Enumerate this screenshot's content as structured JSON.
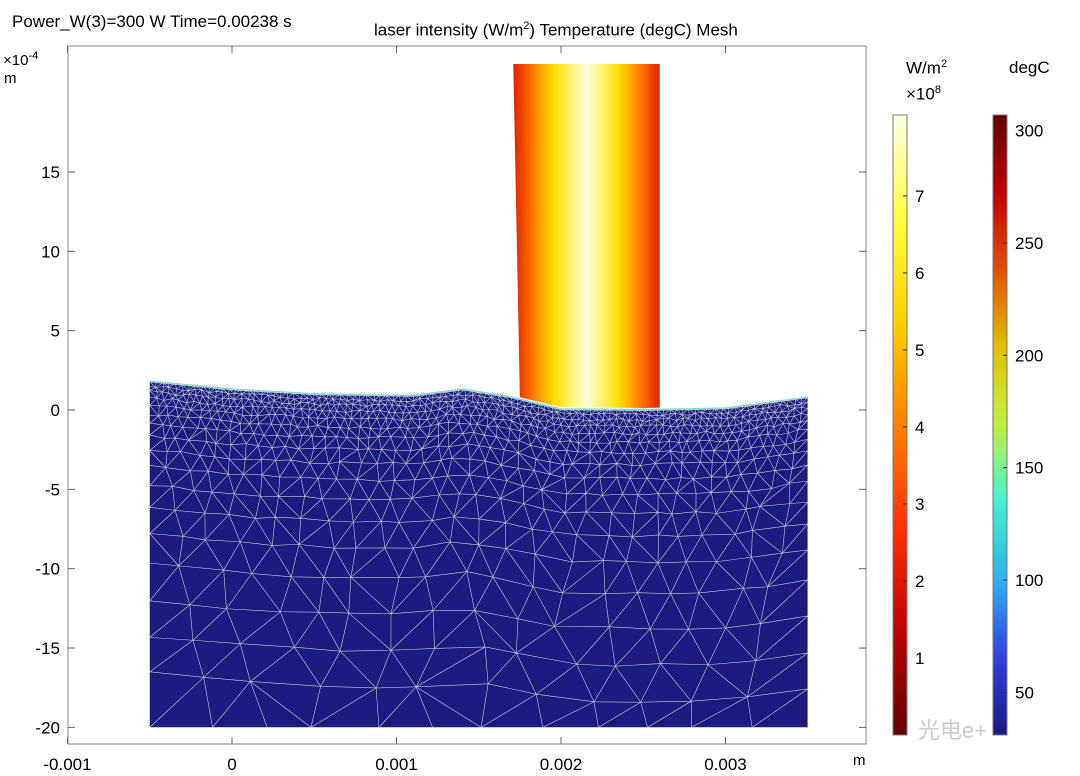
{
  "chart_data": {
    "type": "heatmap",
    "title_left": "Power_W(3)=300 W Time=0.00238 s",
    "title_right_prefix": "laser intensity (W/m",
    "title_right_sup": "2",
    "title_right_suffix": ")  Temperature (degC) Mesh",
    "y_multiplier": "×10",
    "y_multiplier_exp": "-4",
    "y_unit": "m",
    "x_unit": "m",
    "xlim": [
      -0.001,
      0.0038
    ],
    "ylim": [
      -21,
      23
    ],
    "x_ticks": [
      -0.001,
      0,
      0.001,
      0.002,
      0.003
    ],
    "x_tick_labels": [
      "-0.001",
      "0",
      "0.001",
      "0.002",
      "0.003"
    ],
    "y_ticks": [
      15,
      10,
      5,
      0,
      -5,
      -10,
      -15,
      -20
    ],
    "y_tick_labels": [
      "15",
      "10",
      "5",
      "0",
      "-5",
      "-10",
      "-15",
      "-20"
    ],
    "domain": {
      "x": [
        -0.0005,
        0.0035
      ],
      "y_bottom": -20,
      "surface_profile": [
        [
          -0.0005,
          1.8
        ],
        [
          0,
          1.3
        ],
        [
          0.0005,
          1.0
        ],
        [
          0.0011,
          0.9
        ],
        [
          0.0014,
          1.3
        ],
        [
          0.0017,
          0.8
        ],
        [
          0.002,
          0.05
        ],
        [
          0.0025,
          0.0
        ],
        [
          0.003,
          0.1
        ],
        [
          0.0035,
          0.8
        ]
      ],
      "fill_temperature_degC": 35
    },
    "laser_beam": {
      "x": [
        0.00171,
        0.0026
      ],
      "y_top": 21.8,
      "peak_intensity_1e8": 8
    },
    "colorbars": [
      {
        "name": "laser-intensity",
        "unit": "W/m",
        "unit_sup": "2",
        "multiplier": "×10",
        "multiplier_exp": "8",
        "range": [
          0,
          8.05
        ],
        "ticks": [
          1,
          2,
          3,
          4,
          5,
          6,
          7
        ],
        "tick_labels": [
          "1",
          "2",
          "3",
          "4",
          "5",
          "6",
          "7"
        ],
        "colormap": [
          "#600000",
          "#c00000",
          "#ff3000",
          "#ff8000",
          "#ffd000",
          "#ffff40",
          "#ffffe8"
        ]
      },
      {
        "name": "temperature",
        "unit": "degC",
        "range": [
          31,
          307
        ],
        "ticks": [
          50,
          100,
          150,
          200,
          250,
          300
        ],
        "tick_labels": [
          "50",
          "100",
          "150",
          "200",
          "250",
          "300"
        ],
        "colormap": [
          "#1a1a80",
          "#3040e0",
          "#30b0f0",
          "#40f0d0",
          "#c0f040",
          "#e0c000",
          "#e05000",
          "#c00000",
          "#600000"
        ]
      }
    ]
  },
  "watermark": "光电e+"
}
